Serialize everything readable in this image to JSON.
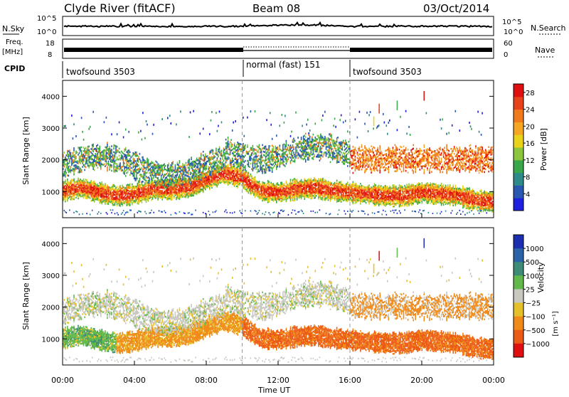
{
  "header": {
    "station": "Clyde River (fitACF)",
    "beam": "Beam 08",
    "date": "03/Oct/2014"
  },
  "strip_panels": {
    "nsky": {
      "label": "N.Sky",
      "left_ticks": [
        "10^5",
        "10^0"
      ],
      "right_ticks": [
        "10^5",
        "10^0"
      ],
      "right_label": "N.Search"
    },
    "freq": {
      "label_line1": "Freq.",
      "label_line2": "[MHz]",
      "left_ticks": [
        "18",
        "8"
      ],
      "right_ticks": [
        "60",
        "0"
      ],
      "right_label": "Nave"
    },
    "cpid": {
      "label": "CPID",
      "segments": [
        {
          "start_hour": 0,
          "name": "twofsound 3503"
        },
        {
          "start_hour": 10,
          "name": "normal (fast) 151"
        },
        {
          "start_hour": 16,
          "name": "twofsound 3503"
        }
      ]
    }
  },
  "chart_data": [
    {
      "type": "heatmap",
      "title": "",
      "xlabel": "",
      "ylabel": "Slant Range [km]",
      "xlim": [
        0,
        24
      ],
      "ylim": [
        180,
        4500
      ],
      "yticks": [
        1000,
        2000,
        3000,
        4000
      ],
      "colorbar": {
        "label": "Power [dB]",
        "ticks": [
          4,
          8,
          12,
          16,
          20,
          24,
          28
        ],
        "range": [
          0,
          30
        ],
        "colors": [
          "#1f1fe0",
          "#2a57b0",
          "#2f8a8a",
          "#3aa84a",
          "#8cc63e",
          "#e8d21a",
          "#f5a623",
          "#f07a1c",
          "#e8421a",
          "#e01010"
        ]
      }
    },
    {
      "type": "heatmap",
      "title": "",
      "xlabel": "Time UT",
      "ylabel": "Slant Range [km]",
      "xlim": [
        0,
        24
      ],
      "ylim": [
        180,
        4500
      ],
      "yticks": [
        1000,
        2000,
        3000,
        4000
      ],
      "xticks": [
        "00:00",
        "04:00",
        "08:00",
        "12:00",
        "16:00",
        "20:00",
        "00:00"
      ],
      "colorbar": {
        "label_main": "Velocity",
        "label_units": "[m s⁻¹]",
        "ticks": [
          "1000",
          "500",
          "100",
          "25",
          "−25",
          "−100",
          "−500",
          "−1000"
        ],
        "colors": [
          "#1c2fb0",
          "#2b63a8",
          "#3c8c78",
          "#62b84a",
          "#c8c8c0",
          "#e6c02a",
          "#f08a1a",
          "#ec5a18",
          "#e01010"
        ]
      }
    }
  ]
}
